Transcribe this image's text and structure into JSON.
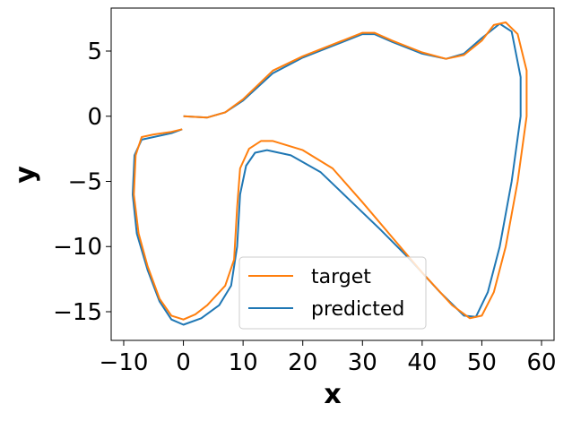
{
  "chart_data": {
    "type": "line",
    "xlabel": "x",
    "ylabel": "y",
    "xlim": [
      -12.1,
      62.1
    ],
    "ylim": [
      -17.2,
      8.3
    ],
    "xticks": [
      {
        "value": -10,
        "label": "−10"
      },
      0,
      10,
      20,
      30,
      40,
      50,
      60
    ],
    "yticks": [
      {
        "value": -15,
        "label": "−15"
      },
      {
        "value": -10,
        "label": "−10"
      },
      {
        "value": -5,
        "label": "−5"
      },
      0,
      5
    ],
    "legend": "lower center",
    "series": [
      {
        "name": "target",
        "color": "#ff7f0e",
        "x": [
          0,
          4,
          7,
          10,
          15,
          20,
          25,
          30,
          32,
          35,
          40,
          44,
          47,
          50,
          52,
          54,
          56,
          57.5,
          57.5,
          56,
          54,
          52,
          50,
          48,
          45,
          40,
          35,
          30,
          25,
          20,
          15,
          13,
          11,
          9.5,
          9,
          8.5,
          7,
          4,
          2,
          0,
          -2,
          -4,
          -6,
          -7.5,
          -8.3,
          -8,
          -7,
          -5,
          -2,
          -0.2
        ],
        "values": [
          0,
          -0.1,
          0.3,
          1.3,
          3.5,
          4.6,
          5.5,
          6.4,
          6.4,
          5.8,
          4.9,
          4.4,
          4.7,
          5.8,
          7.0,
          7.2,
          6.3,
          3.5,
          0,
          -5,
          -10,
          -13.5,
          -15.3,
          -15.5,
          -14.5,
          -12,
          -9.3,
          -6.6,
          -4,
          -2.6,
          -1.9,
          -1.9,
          -2.5,
          -4,
          -7,
          -11,
          -13,
          -14.5,
          -15.2,
          -15.6,
          -15.3,
          -14,
          -11.5,
          -9,
          -6,
          -3,
          -1.6,
          -1.4,
          -1.2,
          -1
        ]
      },
      {
        "name": "predicted",
        "color": "#1f77b4",
        "x": [
          0,
          4,
          7,
          10,
          15,
          20,
          25,
          30,
          32,
          35,
          40,
          44,
          47,
          50,
          53,
          55,
          56.5,
          56.5,
          55,
          53,
          51,
          49,
          47,
          43,
          38,
          33,
          28,
          23,
          18,
          14,
          12,
          10.5,
          9.5,
          9,
          8,
          6,
          3,
          0,
          -2,
          -4,
          -6,
          -7.8,
          -8.5,
          -8.2,
          -7,
          -5,
          -2,
          -0.2
        ],
        "values": [
          0,
          -0.1,
          0.3,
          1.2,
          3.3,
          4.5,
          5.4,
          6.3,
          6.3,
          5.7,
          4.8,
          4.4,
          4.8,
          6.0,
          7.1,
          6.5,
          3,
          0,
          -5,
          -10,
          -13.5,
          -15.4,
          -15.3,
          -13.5,
          -11,
          -8.7,
          -6.5,
          -4.3,
          -3,
          -2.6,
          -2.8,
          -3.8,
          -6,
          -10,
          -13,
          -14.5,
          -15.5,
          -16,
          -15.6,
          -14.2,
          -11.8,
          -9,
          -6,
          -3,
          -1.8,
          -1.6,
          -1.3,
          -1
        ]
      }
    ]
  }
}
